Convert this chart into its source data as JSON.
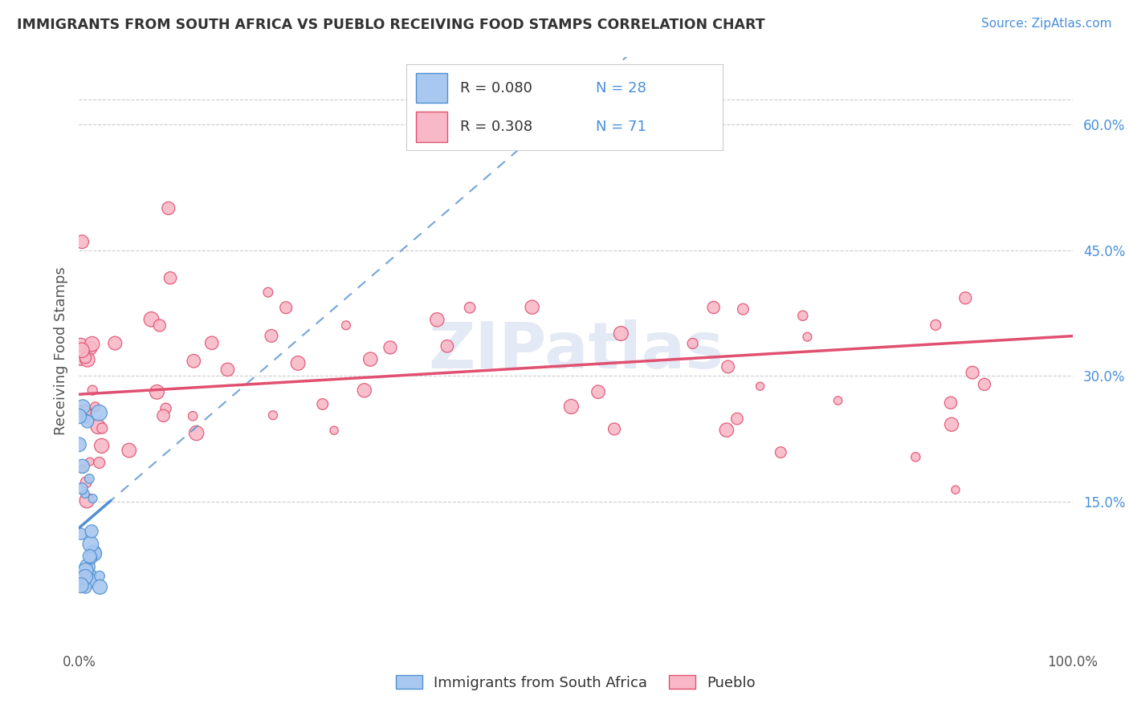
{
  "title": "IMMIGRANTS FROM SOUTH AFRICA VS PUEBLO RECEIVING FOOD STAMPS CORRELATION CHART",
  "source": "Source: ZipAtlas.com",
  "ylabel": "Receiving Food Stamps",
  "yticks": [
    0.15,
    0.3,
    0.45,
    0.6
  ],
  "ytick_labels": [
    "15.0%",
    "30.0%",
    "45.0%",
    "60.0%"
  ],
  "xlim": [
    0.0,
    1.0
  ],
  "ylim": [
    -0.02,
    0.68
  ],
  "legend_r_blue": "R = 0.080",
  "legend_n_blue": "N = 28",
  "legend_r_pink": "R = 0.308",
  "legend_n_pink": "N = 71",
  "legend_label_blue": "Immigrants from South Africa",
  "legend_label_pink": "Pueblo",
  "blue_face": "#a8c8f0",
  "blue_edge": "#5090d0",
  "pink_face": "#f8b8c8",
  "pink_edge": "#e05070",
  "blue_line": "#5090d0",
  "pink_line": "#e05070",
  "grid_color": "#cccccc",
  "bg_color": "#ffffff",
  "title_color": "#333333",
  "source_color": "#4a90d9",
  "n_blue": 28,
  "n_pink": 71
}
